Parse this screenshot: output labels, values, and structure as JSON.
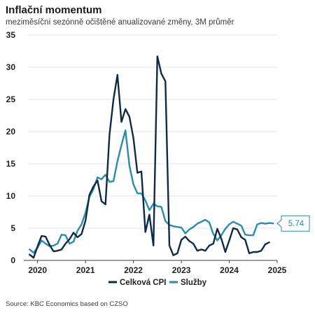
{
  "header": {
    "title": "Inflační momentum",
    "subtitle": "meziměsíční sezónně očištěné anualizované změny, 3M průměr"
  },
  "source": "Source: KBC Economics based on CZSO",
  "colors": {
    "cpi": "#0f2a47",
    "services": "#2a8bab",
    "grid": "#e6e6e6",
    "axis": "#3c3c3c"
  },
  "chart_data": {
    "type": "line",
    "title": "Inflační momentum",
    "subtitle": "meziměsíční sezónně očištěné anualizované změny, 3M průměr",
    "xlabel": "",
    "ylabel": "",
    "xlim": [
      2019.8,
      2025.0
    ],
    "ylim": [
      0,
      35
    ],
    "yticks": [
      0,
      5,
      10,
      15,
      20,
      25,
      30,
      35
    ],
    "xticks": [
      2020,
      2021,
      2022,
      2023,
      2024,
      2025
    ],
    "grid": true,
    "legend": "bottom-center",
    "series": [
      {
        "name": "Celková CPI",
        "x": [
          2019.833,
          2019.917,
          2020.0,
          2020.083,
          2020.167,
          2020.25,
          2020.333,
          2020.417,
          2020.5,
          2020.583,
          2020.667,
          2020.75,
          2020.833,
          2020.917,
          2021.0,
          2021.083,
          2021.167,
          2021.25,
          2021.333,
          2021.417,
          2021.5,
          2021.583,
          2021.667,
          2021.75,
          2021.833,
          2021.917,
          2022.0,
          2022.083,
          2022.167,
          2022.25,
          2022.333,
          2022.417,
          2022.5,
          2022.583,
          2022.667,
          2022.75,
          2022.833,
          2022.917,
          2023.0,
          2023.083,
          2023.167,
          2023.25,
          2023.333,
          2023.417,
          2023.5,
          2023.583,
          2023.667,
          2023.75,
          2023.833,
          2023.917,
          2024.0,
          2024.083,
          2024.167,
          2024.25,
          2024.333,
          2024.417,
          2024.5,
          2024.583,
          2024.667,
          2024.75,
          2024.833,
          2024.917
        ],
        "values": [
          0.9,
          0.4,
          2.2,
          3.8,
          3.7,
          2.4,
          1.4,
          1.5,
          1.7,
          2.6,
          3.3,
          4.3,
          3.6,
          4.1,
          6.2,
          10.2,
          11.5,
          12.4,
          9.2,
          8.7,
          19.5,
          25.0,
          28.8,
          21.5,
          23.5,
          22.3,
          19.0,
          13.6,
          13.8,
          4.4,
          7.1,
          2.3,
          31.7,
          29.0,
          27.8,
          2.3,
          0.8,
          1.1,
          3.2,
          3.7,
          3.0,
          2.6,
          1.5,
          1.7,
          1.5,
          2.3,
          2.6,
          4.9,
          3.4,
          1.3,
          3.1,
          5.0,
          4.8,
          3.6,
          3.2,
          1.1,
          1.3,
          1.3,
          1.5,
          2.5,
          2.8,
          0
        ]
      },
      {
        "name": "Služby",
        "x": [
          2019.833,
          2019.917,
          2020.0,
          2020.083,
          2020.167,
          2020.25,
          2020.333,
          2020.417,
          2020.5,
          2020.583,
          2020.667,
          2020.75,
          2020.833,
          2020.917,
          2021.0,
          2021.083,
          2021.167,
          2021.25,
          2021.333,
          2021.417,
          2021.5,
          2021.583,
          2021.667,
          2021.75,
          2021.833,
          2021.917,
          2022.0,
          2022.083,
          2022.167,
          2022.25,
          2022.333,
          2022.417,
          2022.5,
          2022.583,
          2022.667,
          2022.75,
          2022.833,
          2022.917,
          2023.0,
          2023.083,
          2023.167,
          2023.25,
          2023.333,
          2023.417,
          2023.5,
          2023.583,
          2023.667,
          2023.75,
          2023.833,
          2023.917,
          2024.0,
          2024.083,
          2024.167,
          2024.25,
          2024.333,
          2024.417,
          2024.5,
          2024.583,
          2024.667,
          2024.75,
          2024.833,
          2024.917
        ],
        "values": [
          1.7,
          1.2,
          2.0,
          3.1,
          2.6,
          2.2,
          2.3,
          2.6,
          4.0,
          3.9,
          2.6,
          2.9,
          4.6,
          5.6,
          7.4,
          9.9,
          11.1,
          12.9,
          12.6,
          13.3,
          12.2,
          12.3,
          15.4,
          17.9,
          20.2,
          14.7,
          11.8,
          10.4,
          10.4,
          9.3,
          7.8,
          8.8,
          8.4,
          8.3,
          6.1,
          5.5,
          5.3,
          5.2,
          5.1,
          4.2,
          4.8,
          5.2,
          5.7,
          6.0,
          6.3,
          5.9,
          4.1,
          3.1,
          3.9,
          4.9,
          5.6,
          6.0,
          5.7,
          5.4,
          4.0,
          3.9,
          3.9,
          5.6,
          5.8,
          5.7,
          5.8,
          5.74
        ]
      }
    ],
    "callout": {
      "series": "Služby",
      "label": "5.74"
    }
  }
}
